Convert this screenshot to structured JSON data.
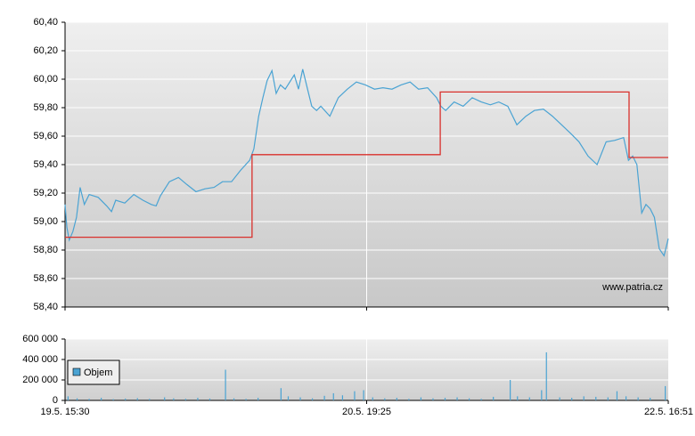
{
  "chart_data": [
    {
      "type": "line",
      "annotation": "www.patria.cz",
      "xlim": [
        0,
        100
      ],
      "ylim": [
        58.4,
        60.4
      ],
      "yticks": [
        {
          "value": 58.4,
          "label": "58,40"
        },
        {
          "value": 58.6,
          "label": "58,60"
        },
        {
          "value": 58.8,
          "label": "58,80"
        },
        {
          "value": 59.0,
          "label": "59,00"
        },
        {
          "value": 59.2,
          "label": "59,20"
        },
        {
          "value": 59.4,
          "label": "59,40"
        },
        {
          "value": 59.6,
          "label": "59,60"
        },
        {
          "value": 59.8,
          "label": "59,80"
        },
        {
          "value": 60.0,
          "label": "60,00"
        },
        {
          "value": 60.2,
          "label": "60,20"
        },
        {
          "value": 60.4,
          "label": "60,40"
        }
      ],
      "grid": true,
      "series": [
        {
          "color": "#4aa3d3",
          "x": [
            0,
            0.3,
            0.7,
            1.3,
            1.9,
            2.5,
            3.2,
            4.0,
            5.5,
            6.9,
            7.7,
            8.4,
            9.9,
            11.4,
            12.9,
            14.3,
            15.1,
            15.8,
            17.3,
            18.8,
            20.2,
            21.7,
            23.2,
            24.7,
            26.1,
            27.6,
            29.1,
            30.6,
            31.3,
            32.1,
            32.8,
            33.5,
            34.3,
            35.0,
            35.7,
            36.5,
            38.0,
            38.7,
            39.4,
            40.2,
            40.9,
            41.7,
            42.4,
            43.9,
            45.3,
            46.8,
            48.3,
            49.8,
            51.3,
            52.7,
            54.2,
            55.7,
            57.2,
            58.6,
            60.1,
            61.6,
            62.3,
            63.1,
            64.5,
            66.0,
            67.5,
            69.0,
            70.5,
            71.9,
            73.4,
            74.9,
            76.4,
            77.8,
            79.3,
            80.8,
            82.3,
            83.8,
            85.2,
            86.7,
            88.2,
            89.7,
            91.1,
            92.6,
            93.4,
            94.1,
            94.8,
            95.6,
            96.3,
            97.0,
            97.7,
            98.5,
            99.3,
            100
          ],
          "values": [
            59.12,
            58.96,
            58.87,
            58.93,
            59.03,
            59.24,
            59.12,
            59.19,
            59.17,
            59.11,
            59.07,
            59.15,
            59.13,
            59.19,
            59.15,
            59.12,
            59.11,
            59.18,
            59.28,
            59.31,
            59.26,
            59.21,
            59.23,
            59.24,
            59.28,
            59.28,
            59.36,
            59.43,
            59.51,
            59.74,
            59.87,
            59.99,
            60.06,
            59.9,
            59.96,
            59.93,
            60.03,
            59.93,
            60.07,
            59.93,
            59.81,
            59.78,
            59.81,
            59.74,
            59.87,
            59.93,
            59.98,
            59.96,
            59.93,
            59.94,
            59.93,
            59.96,
            59.98,
            59.93,
            59.94,
            59.87,
            59.81,
            59.78,
            59.84,
            59.81,
            59.87,
            59.84,
            59.82,
            59.84,
            59.81,
            59.68,
            59.74,
            59.78,
            59.79,
            59.74,
            59.68,
            59.62,
            59.56,
            59.46,
            59.4,
            59.56,
            59.57,
            59.59,
            59.43,
            59.46,
            59.4,
            59.06,
            59.12,
            59.09,
            59.03,
            58.81,
            58.76,
            58.88
          ]
        },
        {
          "color": "#d9302c",
          "step": true,
          "x": [
            0,
            31,
            62.2,
            93.5
          ],
          "values": [
            58.89,
            59.47,
            59.91,
            59.45
          ]
        }
      ]
    },
    {
      "type": "bar",
      "xlim": [
        0,
        100
      ],
      "xticks": [
        {
          "value": 0,
          "label": "19.5. 15:30"
        },
        {
          "value": 50,
          "label": "20.5. 19:25"
        },
        {
          "value": 100,
          "label": "22.5. 16:51"
        }
      ],
      "ylim": [
        0,
        600000
      ],
      "yticks": [
        0,
        {
          "value": 200000,
          "label": "200 000"
        },
        {
          "value": 400000,
          "label": "400 000"
        },
        {
          "value": 600000,
          "label": "600 000"
        }
      ],
      "grid": true,
      "series": [
        {
          "name": "Objem",
          "color": "#4aa3d3",
          "x": [
            0.5,
            2,
            4,
            6,
            8,
            10,
            12,
            14,
            16.5,
            18,
            20,
            22,
            24,
            26.6,
            28,
            30,
            32,
            35.8,
            37,
            39,
            41,
            43,
            44.5,
            46,
            48,
            49.5,
            51,
            53,
            55,
            57,
            59,
            61,
            63,
            65,
            67,
            69,
            71,
            73.8,
            75,
            77,
            79,
            79.8,
            82,
            84,
            86,
            88,
            90,
            91.5,
            93,
            95,
            97,
            99.5
          ],
          "values": [
            40000,
            20000,
            15000,
            25000,
            12000,
            18000,
            22000,
            15000,
            30000,
            20000,
            15000,
            25000,
            18000,
            300000,
            20000,
            15000,
            25000,
            120000,
            40000,
            30000,
            20000,
            45000,
            70000,
            50000,
            90000,
            100000,
            30000,
            20000,
            25000,
            15000,
            30000,
            20000,
            25000,
            30000,
            20000,
            15000,
            35000,
            200000,
            40000,
            30000,
            100000,
            470000,
            30000,
            25000,
            40000,
            35000,
            30000,
            90000,
            40000,
            30000,
            25000,
            140000
          ]
        }
      ]
    }
  ]
}
